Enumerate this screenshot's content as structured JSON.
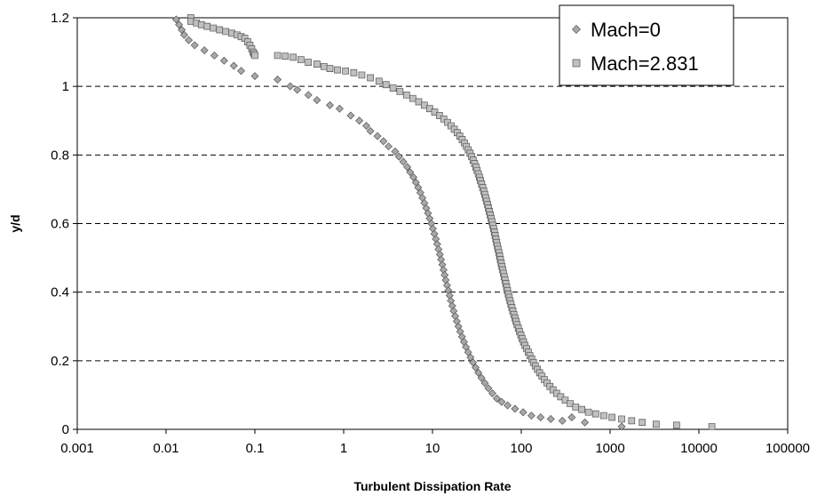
{
  "chart_data": {
    "type": "scatter",
    "xlabel": "Turbulent Dissipation Rate",
    "ylabel": "y/d",
    "xscale": "log",
    "xlim": [
      0.001,
      100000
    ],
    "ylim": [
      0,
      1.2
    ],
    "x_ticks": [
      "0.001",
      "0.01",
      "0.1",
      "1",
      "10",
      "100",
      "1000",
      "10000",
      "100000"
    ],
    "y_ticks": [
      "0",
      "0.2",
      "0.4",
      "0.6",
      "0.8",
      "1",
      "1.2"
    ],
    "grid": "horizontal-dashed",
    "legend_position": "top-right",
    "series": [
      {
        "name": "Mach=0",
        "marker": "diamond",
        "color": "#a8a8a8",
        "points": [
          [
            0.013,
            1.195
          ],
          [
            0.014,
            1.18
          ],
          [
            0.015,
            1.165
          ],
          [
            0.016,
            1.15
          ],
          [
            0.018,
            1.135
          ],
          [
            0.021,
            1.12
          ],
          [
            0.027,
            1.105
          ],
          [
            0.035,
            1.09
          ],
          [
            0.045,
            1.075
          ],
          [
            0.058,
            1.06
          ],
          [
            0.07,
            1.045
          ],
          [
            0.1,
            1.03
          ],
          [
            0.18,
            1.02
          ],
          [
            0.25,
            1.0
          ],
          [
            0.3,
            0.99
          ],
          [
            0.4,
            0.975
          ],
          [
            0.5,
            0.96
          ],
          [
            0.7,
            0.945
          ],
          [
            0.9,
            0.935
          ],
          [
            1.2,
            0.915
          ],
          [
            1.5,
            0.9
          ],
          [
            1.8,
            0.885
          ],
          [
            2.0,
            0.87
          ],
          [
            2.4,
            0.855
          ],
          [
            2.8,
            0.84
          ],
          [
            3.2,
            0.825
          ],
          [
            3.8,
            0.81
          ],
          [
            4.2,
            0.795
          ],
          [
            4.7,
            0.78
          ],
          [
            5.2,
            0.765
          ],
          [
            5.6,
            0.75
          ],
          [
            6.1,
            0.735
          ],
          [
            6.5,
            0.72
          ],
          [
            6.9,
            0.705
          ],
          [
            7.3,
            0.69
          ],
          [
            7.7,
            0.675
          ],
          [
            8.1,
            0.66
          ],
          [
            8.5,
            0.645
          ],
          [
            8.9,
            0.63
          ],
          [
            9.3,
            0.615
          ],
          [
            9.7,
            0.6
          ],
          [
            10.1,
            0.585
          ],
          [
            10.5,
            0.57
          ],
          [
            10.9,
            0.555
          ],
          [
            11.3,
            0.54
          ],
          [
            11.7,
            0.525
          ],
          [
            12.1,
            0.51
          ],
          [
            12.5,
            0.495
          ],
          [
            12.9,
            0.48
          ],
          [
            13.3,
            0.465
          ],
          [
            13.7,
            0.45
          ],
          [
            14.1,
            0.435
          ],
          [
            14.6,
            0.42
          ],
          [
            15.1,
            0.405
          ],
          [
            15.6,
            0.39
          ],
          [
            16.1,
            0.375
          ],
          [
            16.7,
            0.36
          ],
          [
            17.3,
            0.345
          ],
          [
            18.0,
            0.33
          ],
          [
            18.8,
            0.315
          ],
          [
            19.6,
            0.3
          ],
          [
            20.5,
            0.285
          ],
          [
            21.5,
            0.27
          ],
          [
            22.6,
            0.255
          ],
          [
            23.8,
            0.24
          ],
          [
            25.2,
            0.225
          ],
          [
            26.8,
            0.21
          ],
          [
            28.6,
            0.195
          ],
          [
            30.6,
            0.18
          ],
          [
            32.9,
            0.165
          ],
          [
            35.6,
            0.15
          ],
          [
            38.8,
            0.135
          ],
          [
            42.6,
            0.12
          ],
          [
            47.2,
            0.105
          ],
          [
            53.0,
            0.09
          ],
          [
            60.0,
            0.08
          ],
          [
            70.0,
            0.07
          ],
          [
            85.0,
            0.06
          ],
          [
            105,
            0.05
          ],
          [
            130,
            0.04
          ],
          [
            165,
            0.035
          ],
          [
            215,
            0.03
          ],
          [
            290,
            0.025
          ],
          [
            370,
            0.035
          ],
          [
            520,
            0.02
          ],
          [
            1350,
            0.008
          ]
        ]
      },
      {
        "name": "Mach=2.831",
        "marker": "square",
        "color": "#c0c0c0",
        "points": [
          [
            0.019,
            1.2
          ],
          [
            0.019,
            1.19
          ],
          [
            0.022,
            1.185
          ],
          [
            0.025,
            1.18
          ],
          [
            0.029,
            1.175
          ],
          [
            0.034,
            1.17
          ],
          [
            0.04,
            1.165
          ],
          [
            0.047,
            1.16
          ],
          [
            0.055,
            1.155
          ],
          [
            0.063,
            1.15
          ],
          [
            0.07,
            1.145
          ],
          [
            0.077,
            1.14
          ],
          [
            0.083,
            1.13
          ],
          [
            0.088,
            1.12
          ],
          [
            0.092,
            1.11
          ],
          [
            0.095,
            1.1
          ],
          [
            0.098,
            1.095
          ],
          [
            0.1,
            1.09
          ],
          [
            0.18,
            1.09
          ],
          [
            0.22,
            1.088
          ],
          [
            0.27,
            1.085
          ],
          [
            0.33,
            1.078
          ],
          [
            0.4,
            1.07
          ],
          [
            0.5,
            1.065
          ],
          [
            0.6,
            1.058
          ],
          [
            0.7,
            1.052
          ],
          [
            0.85,
            1.048
          ],
          [
            1.05,
            1.045
          ],
          [
            1.3,
            1.04
          ],
          [
            1.6,
            1.033
          ],
          [
            2.0,
            1.025
          ],
          [
            2.5,
            1.015
          ],
          [
            3.0,
            1.005
          ],
          [
            3.6,
            0.995
          ],
          [
            4.3,
            0.985
          ],
          [
            5.1,
            0.975
          ],
          [
            6.0,
            0.965
          ],
          [
            7.0,
            0.955
          ],
          [
            8.1,
            0.945
          ],
          [
            9.3,
            0.935
          ],
          [
            10.6,
            0.925
          ],
          [
            12.0,
            0.915
          ],
          [
            13.4,
            0.905
          ],
          [
            14.8,
            0.895
          ],
          [
            16.2,
            0.885
          ],
          [
            17.6,
            0.875
          ],
          [
            19.0,
            0.865
          ],
          [
            20.3,
            0.855
          ],
          [
            21.6,
            0.845
          ],
          [
            22.9,
            0.835
          ],
          [
            24.1,
            0.825
          ],
          [
            25.3,
            0.815
          ],
          [
            26.5,
            0.805
          ],
          [
            27.6,
            0.795
          ],
          [
            28.7,
            0.785
          ],
          [
            29.8,
            0.775
          ],
          [
            30.8,
            0.765
          ],
          [
            31.8,
            0.755
          ],
          [
            32.8,
            0.745
          ],
          [
            33.8,
            0.735
          ],
          [
            34.8,
            0.725
          ],
          [
            35.8,
            0.715
          ],
          [
            36.8,
            0.705
          ],
          [
            37.8,
            0.695
          ],
          [
            38.8,
            0.685
          ],
          [
            39.8,
            0.675
          ],
          [
            40.8,
            0.665
          ],
          [
            41.8,
            0.655
          ],
          [
            42.8,
            0.645
          ],
          [
            43.8,
            0.635
          ],
          [
            44.8,
            0.625
          ],
          [
            45.8,
            0.615
          ],
          [
            46.8,
            0.605
          ],
          [
            47.8,
            0.595
          ],
          [
            48.8,
            0.585
          ],
          [
            49.8,
            0.575
          ],
          [
            50.8,
            0.565
          ],
          [
            51.8,
            0.555
          ],
          [
            52.8,
            0.545
          ],
          [
            53.8,
            0.535
          ],
          [
            54.9,
            0.525
          ],
          [
            56.0,
            0.515
          ],
          [
            57.1,
            0.505
          ],
          [
            58.2,
            0.495
          ],
          [
            59.4,
            0.485
          ],
          [
            60.6,
            0.475
          ],
          [
            61.8,
            0.465
          ],
          [
            63.0,
            0.455
          ],
          [
            64.3,
            0.445
          ],
          [
            65.6,
            0.435
          ],
          [
            67.0,
            0.425
          ],
          [
            68.4,
            0.415
          ],
          [
            69.9,
            0.405
          ],
          [
            71.4,
            0.395
          ],
          [
            73.0,
            0.385
          ],
          [
            74.7,
            0.375
          ],
          [
            76.5,
            0.365
          ],
          [
            78.4,
            0.355
          ],
          [
            80.4,
            0.345
          ],
          [
            82.5,
            0.335
          ],
          [
            84.8,
            0.325
          ],
          [
            87.2,
            0.315
          ],
          [
            89.8,
            0.305
          ],
          [
            92.6,
            0.295
          ],
          [
            95.6,
            0.285
          ],
          [
            98.9,
            0.275
          ],
          [
            102,
            0.265
          ],
          [
            106,
            0.255
          ],
          [
            110,
            0.245
          ],
          [
            115,
            0.235
          ],
          [
            120,
            0.225
          ],
          [
            125,
            0.215
          ],
          [
            131,
            0.205
          ],
          [
            137,
            0.195
          ],
          [
            144,
            0.185
          ],
          [
            152,
            0.175
          ],
          [
            161,
            0.165
          ],
          [
            171,
            0.155
          ],
          [
            182,
            0.145
          ],
          [
            195,
            0.135
          ],
          [
            210,
            0.125
          ],
          [
            228,
            0.115
          ],
          [
            250,
            0.105
          ],
          [
            278,
            0.095
          ],
          [
            312,
            0.085
          ],
          [
            355,
            0.075
          ],
          [
            410,
            0.065
          ],
          [
            480,
            0.058
          ],
          [
            570,
            0.05
          ],
          [
            690,
            0.045
          ],
          [
            850,
            0.04
          ],
          [
            1050,
            0.035
          ],
          [
            1350,
            0.03
          ],
          [
            1750,
            0.025
          ],
          [
            2300,
            0.02
          ],
          [
            3300,
            0.015
          ],
          [
            5600,
            0.012
          ],
          [
            14000,
            0.008
          ]
        ]
      }
    ]
  }
}
